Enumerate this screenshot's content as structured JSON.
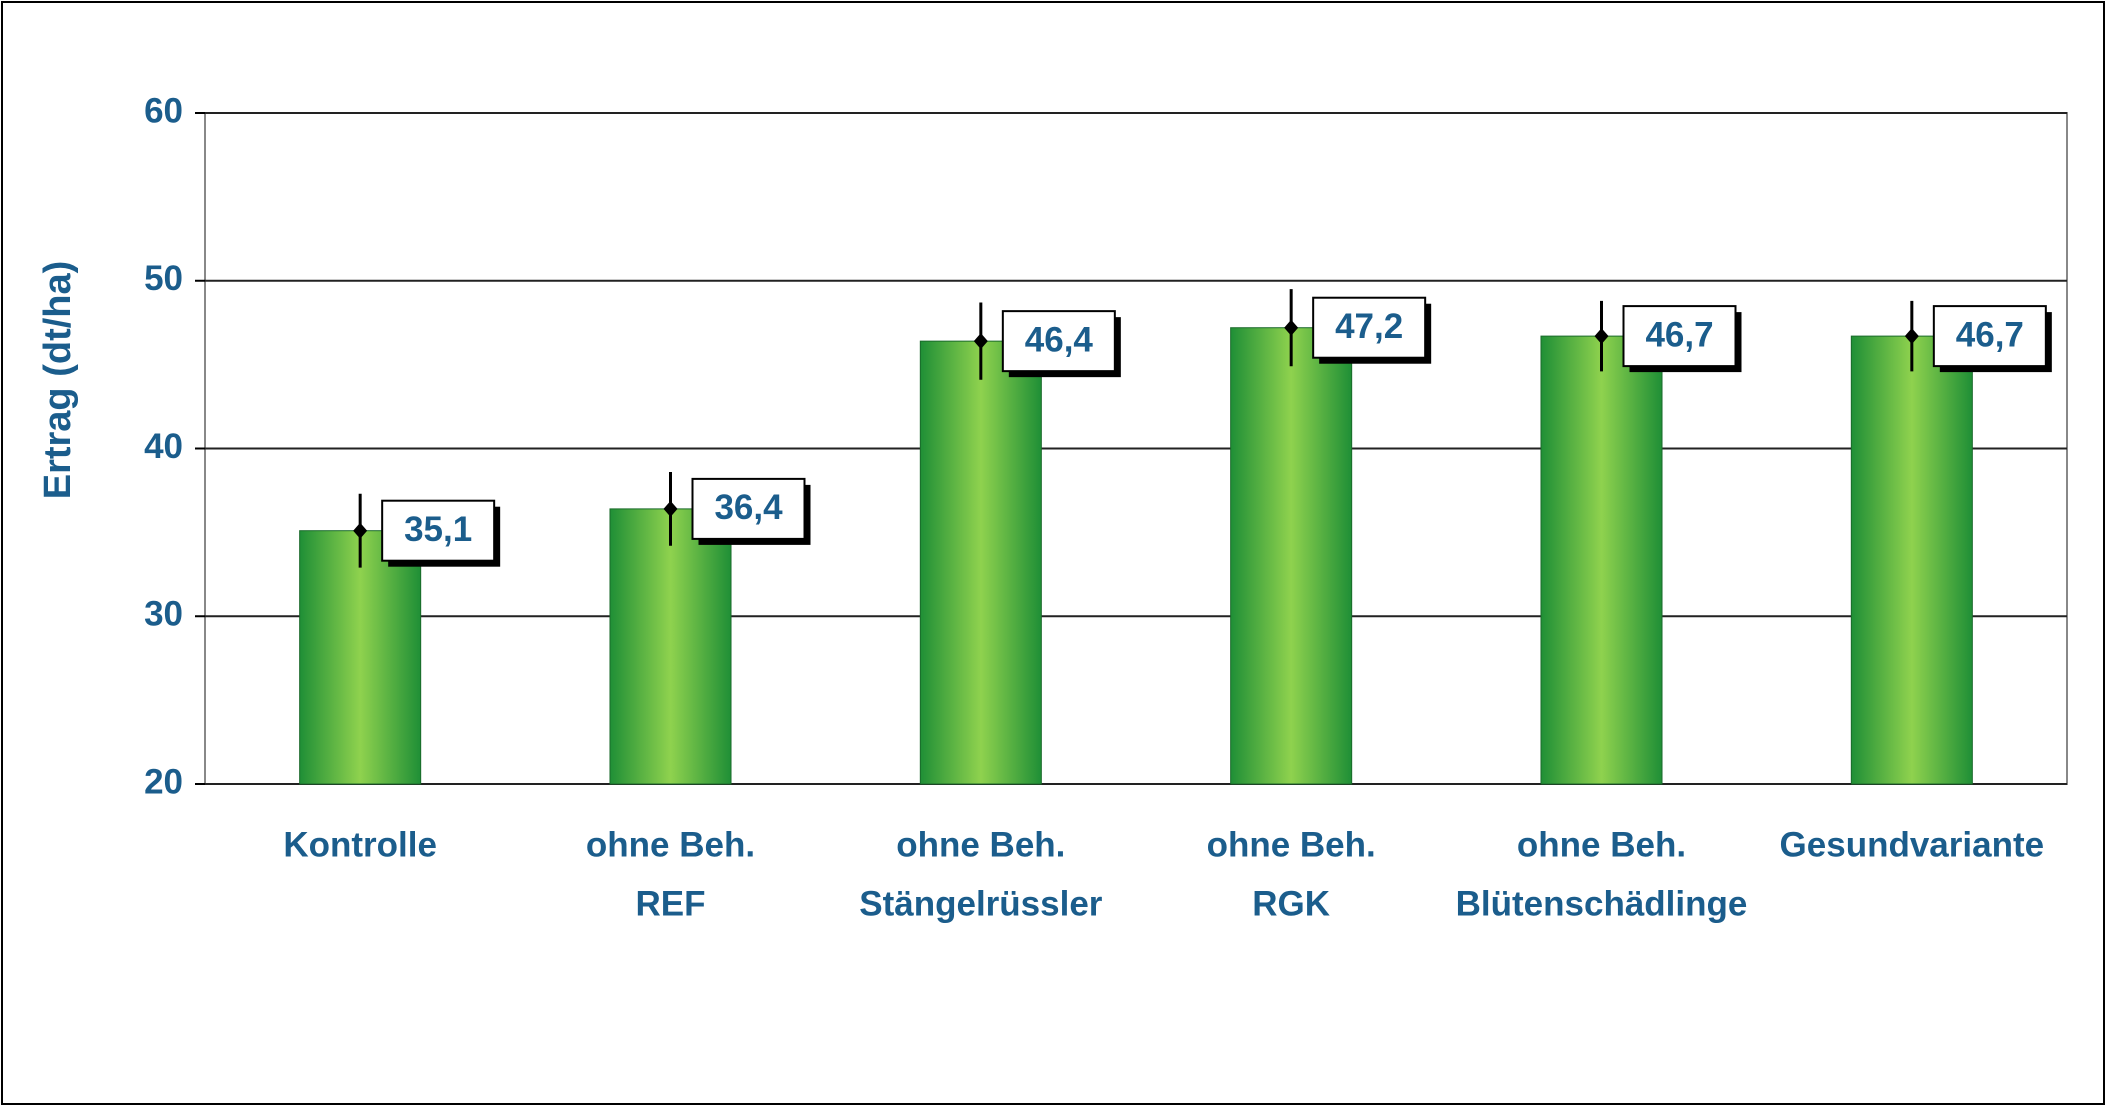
{
  "chart_data": {
    "type": "bar",
    "y_label": "Ertrag (dt/ha)",
    "categories": [
      [
        "Kontrolle"
      ],
      [
        "ohne Beh.",
        "REF"
      ],
      [
        "ohne Beh.",
        "Stängelrüssler"
      ],
      [
        "ohne Beh.",
        "RGK"
      ],
      [
        "ohne Beh.",
        "Blütenschädlinge"
      ],
      [
        "Gesundvariante"
      ]
    ],
    "values": [
      35.1,
      36.4,
      46.4,
      47.2,
      46.7,
      46.7
    ],
    "value_labels": [
      "35,1",
      "36,4",
      "46,4",
      "47,2",
      "46,7",
      "46,7"
    ],
    "errors": [
      2.2,
      2.2,
      2.3,
      2.3,
      2.1,
      2.1
    ],
    "color": "#8fd24e",
    "ylim": [
      20,
      60
    ],
    "yticks": [
      20,
      30,
      40,
      50,
      60
    ],
    "grid": true
  }
}
